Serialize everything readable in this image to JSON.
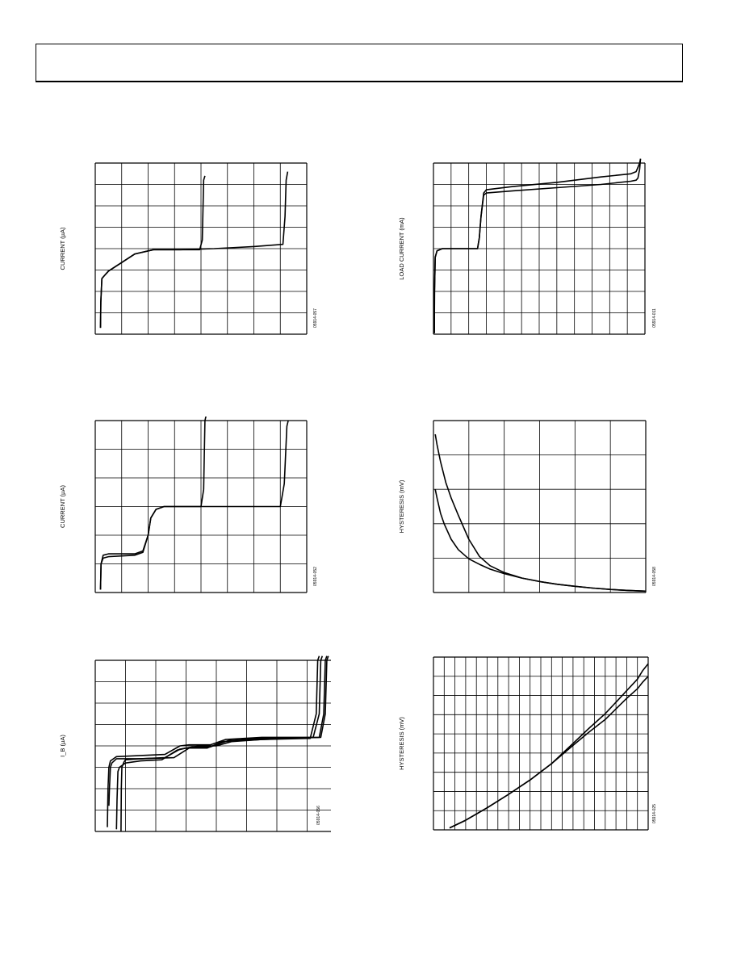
{
  "charts": [
    {
      "chart_data": {
        "type": "line",
        "ylabel": "CURRENT (µA)",
        "code": "05914-057",
        "grid": {
          "cols": 8,
          "rows": 8
        },
        "xlim": [
          0,
          8
        ],
        "ylim": [
          0,
          8
        ],
        "series": [
          {
            "x": [
              0.2,
              0.21,
              0.25,
              0.32,
              0.5,
              1.0,
              1.5,
              2.2,
              3.2,
              3.95,
              4.05,
              4.1,
              4.15
            ],
            "y": [
              0.3,
              1.5,
              2.6,
              2.7,
              2.95,
              3.35,
              3.75,
              3.95,
              3.95,
              3.95,
              4.4,
              7.2,
              7.4
            ]
          },
          {
            "x": [
              0.2,
              0.21,
              0.25,
              0.32,
              0.5,
              1.0,
              1.5,
              2.2,
              3.2,
              4.5,
              6.0,
              7.1,
              7.18,
              7.22,
              7.28
            ],
            "y": [
              0.3,
              1.5,
              2.6,
              2.7,
              2.95,
              3.35,
              3.75,
              3.95,
              3.95,
              4.0,
              4.1,
              4.2,
              5.5,
              7.2,
              7.6
            ]
          }
        ]
      }
    },
    {
      "chart_data": {
        "type": "line",
        "ylabel": "LOAD CURRENT (mA)",
        "code": "05914-011",
        "grid": {
          "cols": 12,
          "rows": 8
        },
        "xlim": [
          0,
          12
        ],
        "ylim": [
          0,
          8
        ],
        "series": [
          {
            "x": [
              0.05,
              0.06,
              0.1,
              0.2,
              0.5,
              1.0,
              2.0,
              2.5,
              2.6,
              2.7,
              2.85,
              3.0,
              4.5,
              7.0,
              9.5,
              11.2,
              11.5,
              11.6,
              11.7,
              11.75
            ],
            "y": [
              0.05,
              2.0,
              3.6,
              3.9,
              4.0,
              4.0,
              4.0,
              4.0,
              4.5,
              5.5,
              6.6,
              6.75,
              6.9,
              7.1,
              7.35,
              7.5,
              7.6,
              7.8,
              8.0,
              8.2
            ]
          },
          {
            "x": [
              0.05,
              0.06,
              0.1,
              0.2,
              0.5,
              1.0,
              2.0,
              2.5,
              2.6,
              2.7,
              2.85,
              3.0,
              4.5,
              7.0,
              9.5,
              11.2,
              11.5,
              11.6,
              11.7,
              11.75
            ],
            "y": [
              0.05,
              2.0,
              3.6,
              3.9,
              4.0,
              4.0,
              4.0,
              4.0,
              4.5,
              5.5,
              6.5,
              6.6,
              6.7,
              6.85,
              7.0,
              7.15,
              7.2,
              7.3,
              7.7,
              8.2
            ]
          }
        ]
      }
    },
    {
      "chart_data": {
        "type": "line",
        "ylabel": "CURRENT (µA)",
        "code": "05914-052",
        "grid": {
          "cols": 8,
          "rows": 6
        },
        "xlim": [
          0,
          8
        ],
        "ylim": [
          0,
          6
        ],
        "series": [
          {
            "x": [
              0.2,
              0.22,
              0.3,
              0.5,
              1.5,
              1.8,
              2.0,
              2.1,
              2.3,
              2.6,
              3.0,
              4.0,
              4.1,
              4.15,
              4.2
            ],
            "y": [
              0.1,
              1.0,
              1.3,
              1.35,
              1.35,
              1.45,
              2.0,
              2.6,
              2.9,
              3.0,
              3.0,
              3.0,
              3.6,
              6.0,
              6.2
            ]
          },
          {
            "x": [
              0.2,
              0.22,
              0.3,
              0.5,
              1.5,
              1.8,
              2.0,
              2.1,
              2.3,
              2.6,
              3.0,
              4.5,
              6.0,
              7.0,
              7.15,
              7.25,
              7.3
            ],
            "y": [
              0.1,
              1.0,
              1.2,
              1.25,
              1.3,
              1.4,
              2.0,
              2.6,
              2.9,
              3.0,
              3.0,
              3.0,
              3.0,
              3.0,
              3.8,
              5.8,
              6.0
            ]
          }
        ]
      }
    },
    {
      "chart_data": {
        "type": "line",
        "ylabel": "HYSTERESIS (mV)",
        "code": "05914-058",
        "grid": {
          "cols": 6,
          "rows": 5
        },
        "xlim": [
          0,
          6
        ],
        "ylim": [
          0,
          5
        ],
        "series": [
          {
            "x": [
              0.05,
              0.1,
              0.2,
              0.35,
              0.5,
              0.7,
              1.0,
              1.3,
              1.6,
              2.0,
              2.5,
              3.0,
              3.5,
              4.0,
              4.5,
              5.0,
              5.5,
              6.0
            ],
            "y": [
              4.6,
              4.3,
              3.8,
              3.2,
              2.75,
              2.25,
              1.55,
              1.05,
              0.78,
              0.58,
              0.42,
              0.32,
              0.24,
              0.18,
              0.13,
              0.09,
              0.06,
              0.04
            ]
          },
          {
            "x": [
              0.05,
              0.1,
              0.2,
              0.3,
              0.5,
              0.7,
              1.0,
              1.3,
              1.6,
              2.0,
              2.5,
              3.0,
              3.5,
              4.0,
              4.5,
              5.0,
              5.5,
              6.0
            ],
            "y": [
              3.0,
              2.75,
              2.3,
              2.0,
              1.55,
              1.25,
              0.98,
              0.82,
              0.68,
              0.55,
              0.42,
              0.32,
              0.24,
              0.18,
              0.13,
              0.09,
              0.06,
              0.04
            ]
          }
        ]
      }
    },
    {
      "chart_data": {
        "type": "line",
        "ylabel": "I_B (µA)",
        "code": "05914-056",
        "grid": {
          "cols": 8,
          "rows": 8
        },
        "xlim": [
          0,
          8
        ],
        "ylim": [
          0,
          8
        ],
        "series": [
          {
            "x": [
              0.45,
              0.47,
              0.5,
              0.55,
              0.7,
              1.5,
              2.6,
              3.1,
              3.4,
              4.0,
              4.5,
              5.5,
              7.4,
              7.55,
              7.6,
              7.65
            ],
            "y": [
              1.2,
              2.0,
              3.0,
              3.2,
              3.4,
              3.4,
              3.45,
              3.9,
              4.0,
              4.0,
              4.2,
              4.3,
              4.4,
              5.5,
              8.0,
              8.2
            ]
          },
          {
            "x": [
              0.4,
              0.42,
              0.45,
              0.5,
              0.7,
              1.5,
              2.3,
              2.8,
              3.1,
              3.8,
              4.3,
              5.5,
              7.2,
              7.4,
              7.45,
              7.5
            ],
            "y": [
              0.2,
              2.0,
              3.0,
              3.3,
              3.5,
              3.55,
              3.6,
              4.0,
              4.05,
              4.05,
              4.3,
              4.4,
              4.4,
              5.5,
              8.0,
              8.2
            ]
          },
          {
            "x": [
              0.7,
              0.72,
              0.75,
              0.8,
              1.0,
              1.5,
              2.2,
              2.7,
              3.0,
              3.7,
              4.2,
              5.5,
              7.1,
              7.3,
              7.35,
              7.4
            ],
            "y": [
              0.1,
              1.5,
              2.8,
              3.0,
              3.2,
              3.3,
              3.35,
              3.8,
              3.9,
              3.9,
              4.2,
              4.3,
              4.35,
              5.5,
              8.0,
              8.2
            ]
          },
          {
            "x": [
              0.85,
              0.86,
              0.88,
              0.95,
              1.0,
              1.5,
              2.3,
              2.8,
              3.2,
              3.8,
              4.4,
              5.5,
              7.45,
              7.6,
              7.65,
              7.7
            ],
            "y": [
              0.0,
              2.0,
              3.0,
              3.25,
              3.35,
              3.4,
              3.45,
              3.85,
              3.95,
              3.95,
              4.25,
              4.35,
              4.4,
              5.5,
              8.0,
              8.2
            ]
          }
        ]
      }
    },
    {
      "chart_data": {
        "type": "line",
        "ylabel": "HYSTERESIS (mV)",
        "code": "05914-025",
        "grid": {
          "cols": 20,
          "rows": 9
        },
        "xlim": [
          0,
          20
        ],
        "ylim": [
          0,
          9
        ],
        "series": [
          {
            "x": [
              1.5,
              3,
              5,
              7,
              9,
              11,
              13,
              14.5,
              16,
              17,
              18,
              19,
              19.5,
              20
            ],
            "y": [
              0.1,
              0.5,
              1.15,
              1.85,
              2.6,
              3.45,
              4.5,
              5.3,
              6.05,
              6.65,
              7.25,
              7.85,
              8.3,
              8.65
            ]
          },
          {
            "x": [
              1.5,
              3,
              5,
              7,
              9,
              11,
              13,
              14.5,
              16,
              17,
              18,
              19,
              19.5,
              20
            ],
            "y": [
              0.1,
              0.5,
              1.15,
              1.85,
              2.6,
              3.45,
              4.4,
              5.1,
              5.75,
              6.3,
              6.85,
              7.35,
              7.7,
              8.0
            ]
          }
        ]
      }
    }
  ]
}
